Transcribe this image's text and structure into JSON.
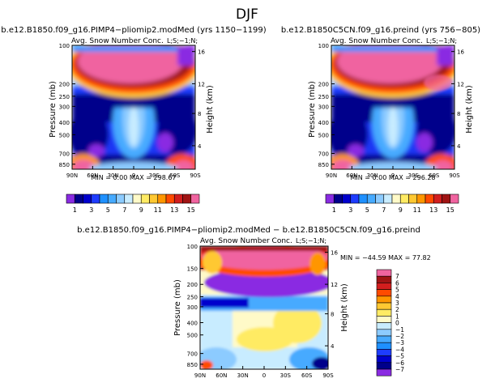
{
  "page_title": "DJF",
  "chart_data": [
    {
      "type": "heatmap",
      "title": "b.e12.B1850.f09_g16.PIMP4−pliomip2.modMed (yrs 1150−1199)",
      "subtitle": "Avg. Snow Number Conc.",
      "units_label": "L;S;−1;N;",
      "xlabel": "",
      "ylabel": "Pressure (mb)",
      "ylabel_right": "Height (km)",
      "x_ticks": [
        "90N",
        "60N",
        "30N",
        "0",
        "30S",
        "60S",
        "90S"
      ],
      "y_ticks": [
        "100",
        "200",
        "250",
        "300",
        "400",
        "500",
        "700",
        "850"
      ],
      "y_ticks_right": [
        "16",
        "12",
        "8",
        "4"
      ],
      "stats": "MIN =    0.00   MAX =  298.67",
      "min": 0.0,
      "max": 298.67,
      "colorbar_labels": [
        "1",
        "3",
        "5",
        "7",
        "9",
        "11",
        "13",
        "15"
      ],
      "colorbar_levels": [
        1,
        2,
        3,
        4,
        5,
        6,
        7,
        8,
        9,
        10,
        11,
        12,
        13,
        14,
        15
      ]
    },
    {
      "type": "heatmap",
      "title": "b.e12.B1850C5CN.f09_g16.preind (yrs 756−805)",
      "subtitle": "Avg. Snow Number Conc.",
      "units_label": "L;S;−1;N;",
      "xlabel": "",
      "ylabel": "Pressure (mb)",
      "ylabel_right": "Height (km)",
      "x_ticks": [
        "90N",
        "60N",
        "30N",
        "0",
        "30S",
        "60S",
        "90S"
      ],
      "y_ticks": [
        "100",
        "200",
        "250",
        "300",
        "400",
        "500",
        "700",
        "850"
      ],
      "y_ticks_right": [
        "16",
        "12",
        "8",
        "4"
      ],
      "stats": "MIN =    0.00   MAX =  296.28",
      "min": 0.0,
      "max": 296.28,
      "colorbar_labels": [
        "1",
        "3",
        "5",
        "7",
        "9",
        "11",
        "13",
        "15"
      ],
      "colorbar_levels": [
        1,
        2,
        3,
        4,
        5,
        6,
        7,
        8,
        9,
        10,
        11,
        12,
        13,
        14,
        15
      ]
    },
    {
      "type": "heatmap",
      "title": "b.e12.B1850.f09_g16.PIMP4−pliomip2.modMed − b.e12.B1850C5CN.f09_g16.preind",
      "subtitle": "Avg. Snow Number Conc.",
      "units_label": "L;S;−1;N;",
      "xlabel": "",
      "ylabel": "Pressure (mb)",
      "ylabel_right": "Height (km)",
      "x_ticks": [
        "90N",
        "60N",
        "30N",
        "0",
        "30S",
        "60S",
        "90S"
      ],
      "y_ticks": [
        "100",
        "150",
        "200",
        "250",
        "300",
        "400",
        "500",
        "700",
        "850"
      ],
      "y_ticks_right": [
        "16",
        "12",
        "8",
        "4"
      ],
      "stats": "MIN = −44.59   MAX =   77.82",
      "min": -44.59,
      "max": 77.82,
      "colorbar_labels": [
        "7",
        "6",
        "5",
        "4",
        "3",
        "2",
        "1",
        "0",
        "−1",
        "−2",
        "−3",
        "−4",
        "−5",
        "−6",
        "−7"
      ],
      "colorbar_levels": [
        7,
        6,
        5,
        4,
        3,
        2,
        1,
        0,
        -1,
        -2,
        -3,
        -4,
        -5,
        -6,
        -7
      ]
    }
  ],
  "colors": {
    "abs_scale": [
      "#8a2be2",
      "#00008b",
      "#0000cd",
      "#1e3cff",
      "#1e90ff",
      "#46aaff",
      "#8ccbff",
      "#c8ecff",
      "#fffac8",
      "#ffeb64",
      "#ffc832",
      "#ff9600",
      "#ff4b00",
      "#d21e1e",
      "#a01414",
      "#f064a0"
    ],
    "diff_scale": [
      "#f064a0",
      "#a01414",
      "#d21e1e",
      "#ff4b00",
      "#ff9600",
      "#ffc832",
      "#ffeb64",
      "#fffac8",
      "#c8ecff",
      "#8ccbff",
      "#46aaff",
      "#1e90ff",
      "#1e3cff",
      "#0000cd",
      "#00008b",
      "#8a2be2"
    ]
  }
}
